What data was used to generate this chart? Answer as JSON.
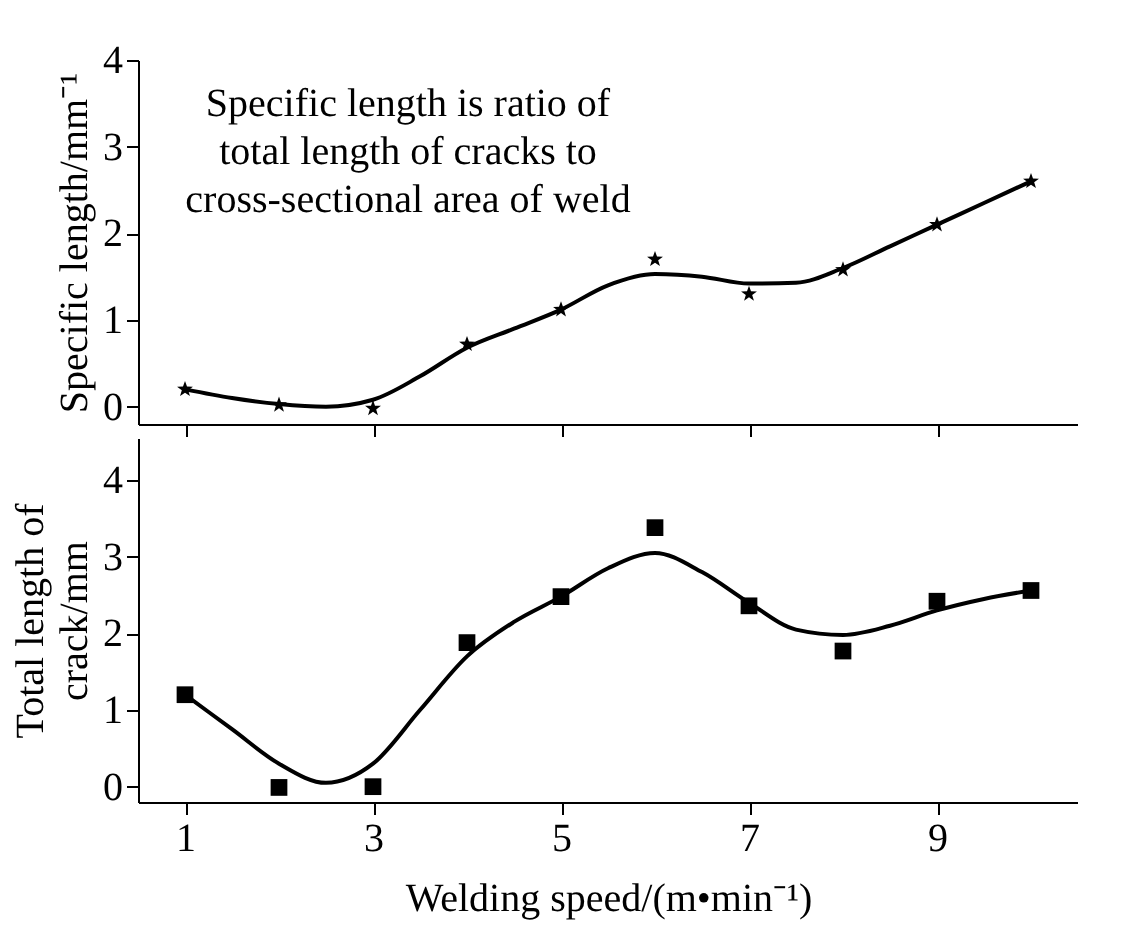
{
  "chart_data": [
    {
      "type": "scatter",
      "ylabel": "Specific length/mm⁻¹",
      "annotations": [
        "Specific length is ratio of\ntotal length of cracks to\ncross-sectional area of weld"
      ],
      "x": [
        1,
        2,
        3,
        4,
        5,
        6,
        7,
        8,
        9,
        10
      ],
      "xlim": [
        0.5,
        10.5
      ],
      "xticks": [
        1,
        3,
        5,
        7,
        9
      ],
      "ylim": [
        -0.2,
        4
      ],
      "yticks": [
        0,
        1,
        2,
        3,
        4
      ],
      "tick_labels": "y",
      "grid": false,
      "series": [
        {
          "marker": "star",
          "color": "#000000",
          "values": [
            0.2,
            0.02,
            -0.02,
            0.72,
            1.12,
            1.7,
            1.3,
            1.58,
            2.1,
            2.6
          ]
        },
        {
          "type": "line",
          "marker": "none",
          "line_style": "solid",
          "color": "#000000",
          "x": [
            1,
            1.5,
            2,
            2.5,
            3,
            3.5,
            4,
            4.5,
            5,
            5.5,
            6,
            6.5,
            7,
            7.5,
            8,
            8.5,
            9,
            9.5,
            10
          ],
          "values": [
            0.2,
            0.1,
            0.03,
            0.0,
            0.08,
            0.35,
            0.68,
            0.9,
            1.12,
            1.4,
            1.53,
            1.5,
            1.42,
            1.43,
            1.6,
            1.85,
            2.1,
            2.35,
            2.6
          ]
        }
      ]
    },
    {
      "type": "scatter",
      "xlabel": "Welding speed/(m•min⁻¹)",
      "ylabel": "Total length of\ncrack/mm",
      "x": [
        1,
        2,
        3,
        4,
        5,
        6,
        7,
        8,
        9,
        10
      ],
      "xlim": [
        0.5,
        10.5
      ],
      "xticks": [
        1,
        3,
        5,
        7,
        9
      ],
      "ylim": [
        -0.2,
        4.55
      ],
      "yticks": [
        0,
        1,
        2,
        3,
        4
      ],
      "grid": false,
      "series": [
        {
          "marker": "square",
          "color": "#000000",
          "values": [
            1.2,
            -0.01,
            0.0,
            1.88,
            2.48,
            3.38,
            2.36,
            1.77,
            2.42,
            2.56
          ]
        },
        {
          "type": "line",
          "marker": "none",
          "line_style": "solid",
          "color": "#000000",
          "x": [
            1,
            1.5,
            2,
            2.5,
            3,
            3.5,
            4,
            4.5,
            5,
            5.5,
            6,
            6.5,
            7,
            7.5,
            8,
            8.5,
            9,
            9.5,
            10
          ],
          "values": [
            1.2,
            0.75,
            0.3,
            0.05,
            0.3,
            1.0,
            1.7,
            2.15,
            2.48,
            2.85,
            3.05,
            2.8,
            2.4,
            2.05,
            1.98,
            2.1,
            2.3,
            2.45,
            2.56
          ]
        }
      ]
    }
  ]
}
